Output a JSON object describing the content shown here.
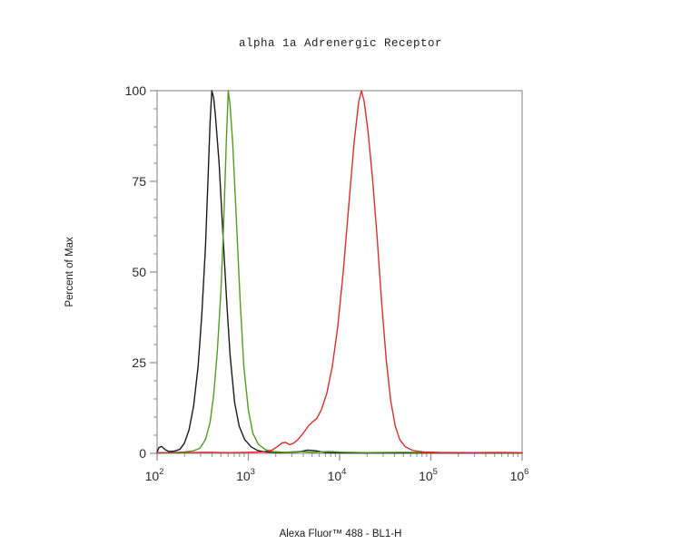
{
  "chart_data": {
    "type": "line",
    "title": "alpha 1a Adrenergic Receptor",
    "xlabel": "Alexa Fluor™ 488 - BL1-H",
    "ylabel": "Percent of Max",
    "x_scale": "log10",
    "xlim_log": [
      2,
      6
    ],
    "ylim": [
      0,
      100
    ],
    "grid": false,
    "legend": "none",
    "frame_color": "#949494",
    "tick_color": "#8c8c8c",
    "label_color": "#2a2a2a",
    "x_ticks": [
      {
        "base": "10",
        "exp": "2"
      },
      {
        "base": "10",
        "exp": "3"
      },
      {
        "base": "10",
        "exp": "4"
      },
      {
        "base": "10",
        "exp": "5"
      },
      {
        "base": "10",
        "exp": "6"
      }
    ],
    "x_minor_mantissas": [
      2,
      3,
      4,
      5,
      6,
      7,
      8,
      9
    ],
    "y_ticks": [
      0,
      25,
      50,
      75,
      100
    ],
    "y_minor_step": 5,
    "series": [
      {
        "name": "black-histogram",
        "color": "#1a1a1a",
        "peak_x_log": 2.6,
        "peak_y": 100,
        "points": [
          [
            2.0,
            0.3
          ],
          [
            2.02,
            1.6
          ],
          [
            2.05,
            1.9
          ],
          [
            2.09,
            1.0
          ],
          [
            2.13,
            0.5
          ],
          [
            2.19,
            0.6
          ],
          [
            2.25,
            1.1
          ],
          [
            2.3,
            2.8
          ],
          [
            2.35,
            6.5
          ],
          [
            2.4,
            13
          ],
          [
            2.45,
            24
          ],
          [
            2.49,
            38
          ],
          [
            2.53,
            57
          ],
          [
            2.56,
            77
          ],
          [
            2.58,
            91
          ],
          [
            2.6,
            100
          ],
          [
            2.62,
            98
          ],
          [
            2.64,
            93
          ],
          [
            2.68,
            80
          ],
          [
            2.72,
            61
          ],
          [
            2.76,
            43
          ],
          [
            2.8,
            27
          ],
          [
            2.85,
            14
          ],
          [
            2.9,
            7.5
          ],
          [
            2.96,
            3.8
          ],
          [
            3.03,
            1.8
          ],
          [
            3.1,
            0.8
          ],
          [
            3.18,
            0.4
          ],
          [
            3.35,
            0.2
          ],
          [
            3.55,
            0.4
          ],
          [
            3.65,
            0.9
          ],
          [
            3.74,
            0.7
          ],
          [
            3.85,
            0.2
          ],
          [
            4.1,
            0.1
          ],
          [
            4.6,
            0.1
          ],
          [
            5.3,
            0.1
          ],
          [
            6.0,
            0.1
          ]
        ]
      },
      {
        "name": "green-histogram",
        "color": "#529b20",
        "peak_x_log": 2.78,
        "peak_y": 100,
        "points": [
          [
            2.0,
            0.2
          ],
          [
            2.15,
            0.2
          ],
          [
            2.3,
            0.4
          ],
          [
            2.4,
            0.7
          ],
          [
            2.47,
            1.4
          ],
          [
            2.53,
            3.8
          ],
          [
            2.58,
            8.5
          ],
          [
            2.62,
            16
          ],
          [
            2.66,
            28
          ],
          [
            2.7,
            45
          ],
          [
            2.73,
            64
          ],
          [
            2.76,
            87
          ],
          [
            2.78,
            100
          ],
          [
            2.8,
            96
          ],
          [
            2.83,
            85
          ],
          [
            2.87,
            64
          ],
          [
            2.91,
            42
          ],
          [
            2.95,
            24
          ],
          [
            3.0,
            12
          ],
          [
            3.05,
            5.5
          ],
          [
            3.11,
            2.5
          ],
          [
            3.18,
            1.1
          ],
          [
            3.26,
            0.5
          ],
          [
            3.4,
            0.3
          ],
          [
            3.55,
            0.5
          ],
          [
            3.7,
            0.3
          ],
          [
            3.9,
            0.5
          ],
          [
            4.05,
            0.3
          ],
          [
            4.3,
            0.2
          ],
          [
            4.7,
            0.3
          ],
          [
            5.1,
            0.2
          ],
          [
            5.6,
            0.2
          ],
          [
            6.0,
            0.15
          ]
        ]
      },
      {
        "name": "red-histogram",
        "color": "#d63030",
        "peak_x_log": 4.24,
        "peak_y": 100,
        "points": [
          [
            2.0,
            0.15
          ],
          [
            2.3,
            0.2
          ],
          [
            2.55,
            0.3
          ],
          [
            2.8,
            0.2
          ],
          [
            3.0,
            0.3
          ],
          [
            3.15,
            0.4
          ],
          [
            3.26,
            0.9
          ],
          [
            3.32,
            1.9
          ],
          [
            3.37,
            2.9
          ],
          [
            3.41,
            3.0
          ],
          [
            3.45,
            2.4
          ],
          [
            3.49,
            2.7
          ],
          [
            3.54,
            3.7
          ],
          [
            3.6,
            5.5
          ],
          [
            3.66,
            7.6
          ],
          [
            3.71,
            8.8
          ],
          [
            3.75,
            9.6
          ],
          [
            3.8,
            12
          ],
          [
            3.86,
            16.5
          ],
          [
            3.92,
            24
          ],
          [
            3.98,
            35
          ],
          [
            4.04,
            50
          ],
          [
            4.1,
            68
          ],
          [
            4.16,
            86
          ],
          [
            4.21,
            97
          ],
          [
            4.24,
            100
          ],
          [
            4.27,
            97
          ],
          [
            4.31,
            89
          ],
          [
            4.36,
            76
          ],
          [
            4.41,
            60
          ],
          [
            4.46,
            42
          ],
          [
            4.51,
            26
          ],
          [
            4.56,
            14.5
          ],
          [
            4.61,
            7.5
          ],
          [
            4.66,
            3.8
          ],
          [
            4.72,
            1.8
          ],
          [
            4.8,
            0.8
          ],
          [
            4.92,
            0.4
          ],
          [
            5.1,
            0.25
          ],
          [
            5.45,
            0.2
          ],
          [
            5.75,
            0.25
          ],
          [
            6.0,
            0.2
          ]
        ]
      }
    ]
  }
}
